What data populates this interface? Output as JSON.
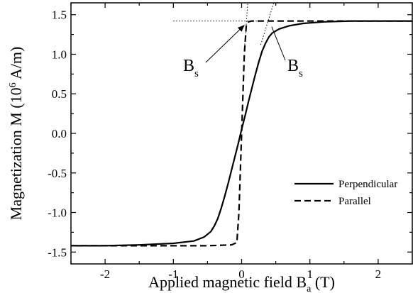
{
  "chart_data": {
    "type": "line",
    "title": "",
    "xlabel": {
      "main": "Applied magnetic field B",
      "sub": "a",
      "unit": " (T)"
    },
    "ylabel": {
      "main": "Magnetization M (10",
      "sup": "6",
      "unit": " A/m)"
    },
    "xlim": [
      -2.5,
      2.5
    ],
    "ylim": [
      -1.65,
      1.65
    ],
    "xticks": [
      -2,
      -1,
      0,
      1,
      2
    ],
    "xtick_labels": [
      "-2",
      "-1",
      "0",
      "1",
      "2"
    ],
    "yticks": [
      -1.5,
      -1.0,
      -0.5,
      0.0,
      0.5,
      1.0,
      1.5
    ],
    "ytick_labels": [
      "-1.5",
      "-1.0",
      "-0.5",
      "0.0",
      "0.5",
      "1.0",
      "1.5"
    ],
    "grid": false,
    "legend_position": "lower-right",
    "series": [
      {
        "name": "Perpendicular",
        "style": "solid",
        "x": [
          -2.5,
          -2.0,
          -1.5,
          -1.0,
          -0.7,
          -0.55,
          -0.45,
          -0.4,
          -0.35,
          -0.3,
          -0.25,
          -0.2,
          -0.15,
          -0.1,
          -0.05,
          0.0,
          0.05,
          0.1,
          0.15,
          0.2,
          0.25,
          0.3,
          0.35,
          0.4,
          0.45,
          0.55,
          0.7,
          0.9,
          1.2,
          1.6,
          2.0,
          2.5
        ],
        "y": [
          -1.42,
          -1.42,
          -1.41,
          -1.39,
          -1.36,
          -1.31,
          -1.24,
          -1.17,
          -1.08,
          -0.95,
          -0.8,
          -0.64,
          -0.47,
          -0.3,
          -0.13,
          0.05,
          0.22,
          0.4,
          0.57,
          0.74,
          0.9,
          1.04,
          1.14,
          1.22,
          1.27,
          1.32,
          1.36,
          1.39,
          1.41,
          1.42,
          1.42,
          1.42
        ]
      },
      {
        "name": "Parallel",
        "style": "dashed",
        "x": [
          -2.5,
          -1.5,
          -1.0,
          -0.5,
          -0.15,
          -0.07,
          -0.04,
          -0.02,
          0.0,
          0.02,
          0.04,
          0.07,
          0.1,
          0.15,
          0.3,
          0.5,
          1.0,
          1.5,
          2.0,
          2.5
        ],
        "y": [
          -1.42,
          -1.42,
          -1.42,
          -1.42,
          -1.41,
          -1.38,
          -1.0,
          -0.5,
          0.0,
          0.5,
          1.0,
          1.38,
          1.41,
          1.42,
          1.42,
          1.42,
          1.42,
          1.42,
          1.42,
          1.42
        ]
      }
    ],
    "annotations": [
      {
        "label": "B",
        "sub": "s",
        "target": [
          0.1,
          1.42
        ]
      },
      {
        "label": "B",
        "sub": "s",
        "target": [
          0.42,
          1.42
        ]
      }
    ],
    "guide_lines": {
      "horizontal_y": 1.42,
      "horizontal_x_range": [
        -1.0,
        0.25
      ],
      "steep_segments": [
        {
          "x": [
            0.04,
            0.09
          ],
          "y": [
            1.05,
            1.65
          ]
        },
        {
          "x": [
            0.28,
            0.47
          ],
          "y": [
            1.12,
            1.65
          ]
        }
      ]
    }
  }
}
